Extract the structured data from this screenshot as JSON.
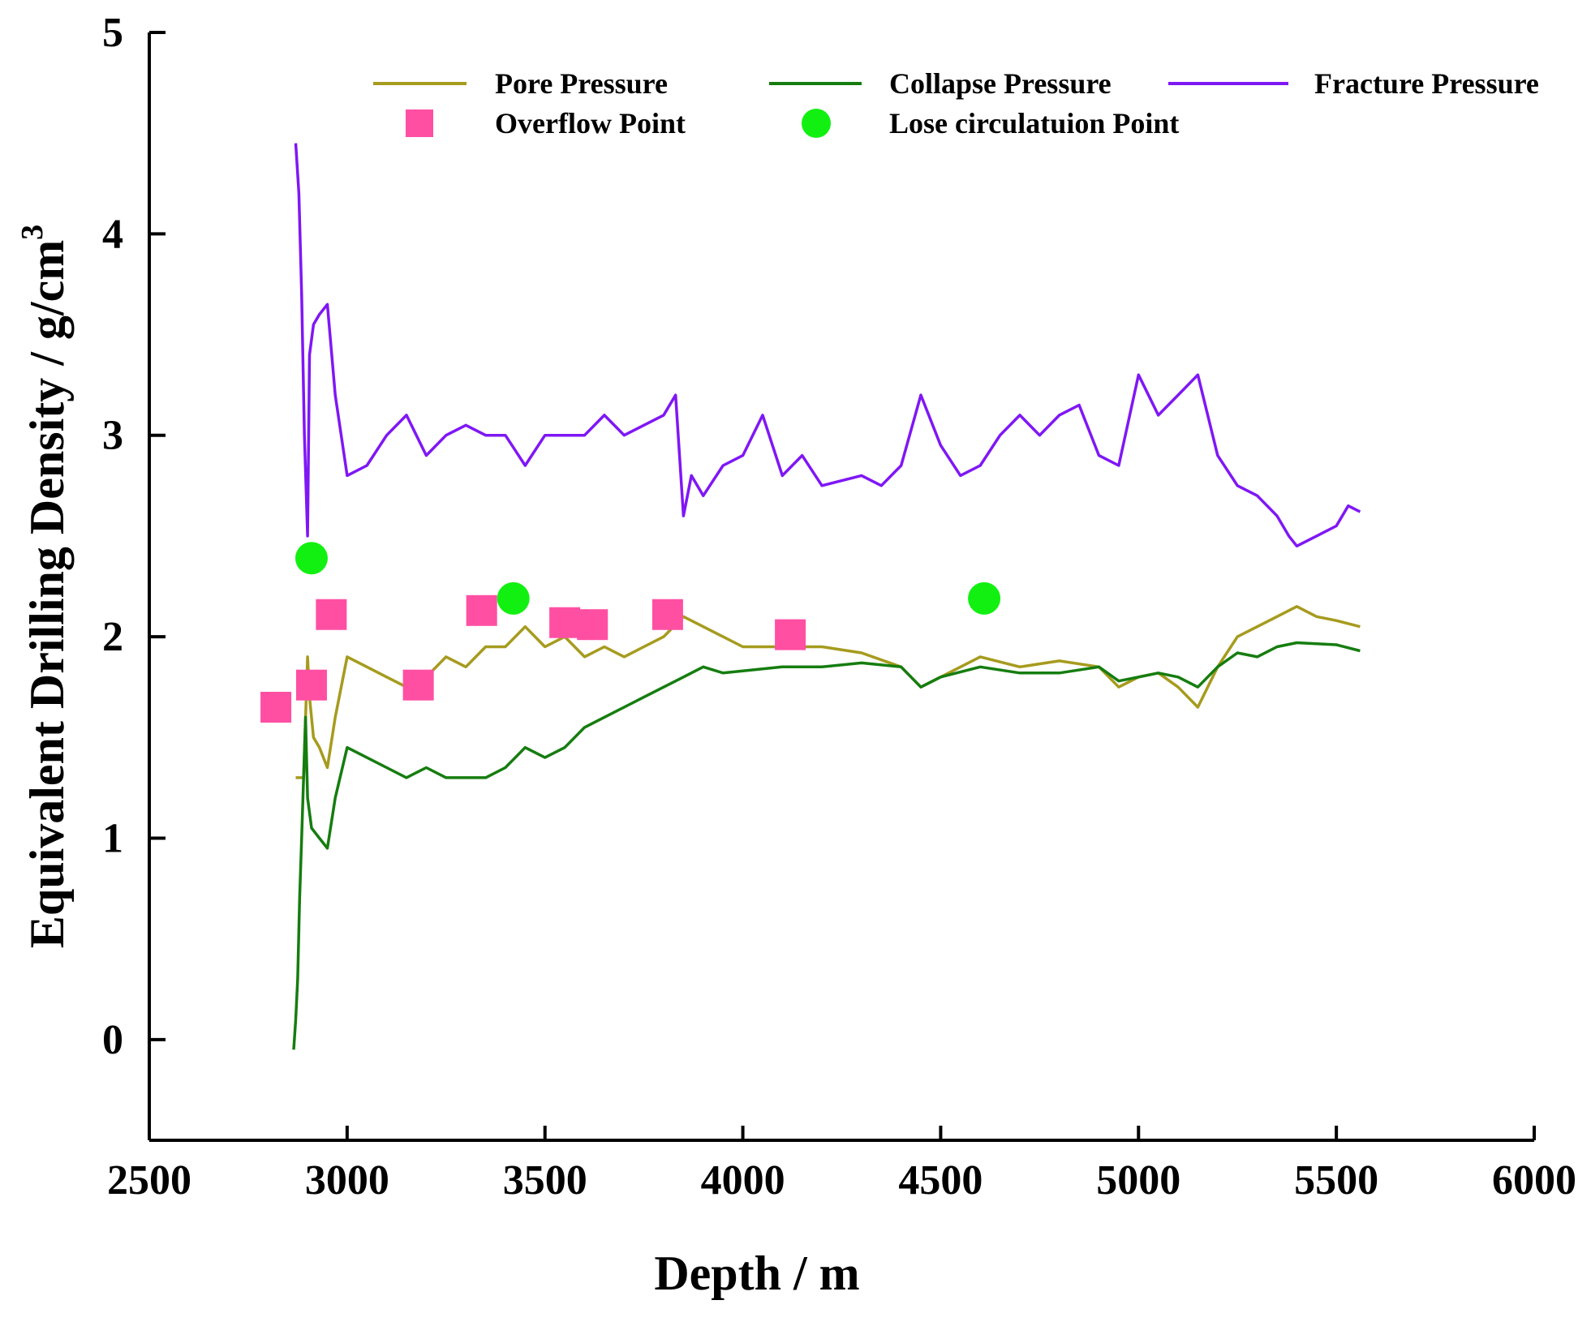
{
  "chart_data": {
    "type": "line",
    "xlabel": "Depth / m",
    "ylabel": "Equivalent Drilling Density / g/cm",
    "ylabel_sup": "3",
    "xlim": [
      2500,
      6000
    ],
    "ylim": [
      -0.5,
      5
    ],
    "xticks": [
      "2500",
      "3000",
      "3500",
      "4000",
      "4500",
      "5000",
      "5500",
      "6000"
    ],
    "yticks": [
      "0",
      "1",
      "2",
      "3",
      "4",
      "5"
    ],
    "legend_position": "top",
    "series": [
      {
        "name": "Pore Pressure",
        "kind": "line",
        "color": "#a69b1e",
        "x": [
          2870,
          2890,
          2900,
          2905,
          2915,
          2930,
          2950,
          2970,
          3000,
          3050,
          3100,
          3150,
          3200,
          3250,
          3300,
          3350,
          3400,
          3450,
          3500,
          3550,
          3600,
          3650,
          3700,
          3750,
          3800,
          3850,
          3900,
          3950,
          4000,
          4100,
          4200,
          4300,
          4400,
          4450,
          4500,
          4600,
          4700,
          4800,
          4900,
          4950,
          5000,
          5050,
          5100,
          5150,
          5200,
          5250,
          5300,
          5350,
          5400,
          5450,
          5500,
          5560
        ],
        "y": [
          1.3,
          1.3,
          1.9,
          1.7,
          1.5,
          1.45,
          1.35,
          1.6,
          1.9,
          1.85,
          1.8,
          1.75,
          1.8,
          1.9,
          1.85,
          1.95,
          1.95,
          2.05,
          1.95,
          2.0,
          1.9,
          1.95,
          1.9,
          1.95,
          2.0,
          2.1,
          2.05,
          2.0,
          1.95,
          1.95,
          1.95,
          1.92,
          1.85,
          1.75,
          1.8,
          1.9,
          1.85,
          1.88,
          1.85,
          1.75,
          1.8,
          1.82,
          1.75,
          1.65,
          1.85,
          2.0,
          2.05,
          2.1,
          2.15,
          2.1,
          2.08,
          2.05
        ]
      },
      {
        "name": "Collapse Pressure",
        "kind": "line",
        "color": "#157d0f",
        "x": [
          2865,
          2870,
          2875,
          2880,
          2885,
          2890,
          2895,
          2900,
          2910,
          2930,
          2950,
          2970,
          3000,
          3050,
          3100,
          3150,
          3200,
          3250,
          3300,
          3350,
          3400,
          3450,
          3500,
          3550,
          3600,
          3650,
          3700,
          3750,
          3800,
          3850,
          3900,
          3950,
          4000,
          4100,
          4200,
          4300,
          4400,
          4450,
          4500,
          4600,
          4700,
          4800,
          4900,
          4950,
          5000,
          5050,
          5100,
          5150,
          5200,
          5250,
          5300,
          5350,
          5400,
          5500,
          5560
        ],
        "y": [
          -0.05,
          0.1,
          0.3,
          0.7,
          1.0,
          1.3,
          1.6,
          1.2,
          1.05,
          1.0,
          0.95,
          1.2,
          1.45,
          1.4,
          1.35,
          1.3,
          1.35,
          1.3,
          1.3,
          1.3,
          1.35,
          1.45,
          1.4,
          1.45,
          1.55,
          1.6,
          1.65,
          1.7,
          1.75,
          1.8,
          1.85,
          1.82,
          1.83,
          1.85,
          1.85,
          1.87,
          1.85,
          1.75,
          1.8,
          1.85,
          1.82,
          1.82,
          1.85,
          1.78,
          1.8,
          1.82,
          1.8,
          1.75,
          1.85,
          1.92,
          1.9,
          1.95,
          1.97,
          1.96,
          1.93
        ]
      },
      {
        "name": "Fracture Pressure",
        "kind": "line",
        "color": "#7f17f5",
        "x": [
          2870,
          2878,
          2885,
          2892,
          2900,
          2905,
          2915,
          2930,
          2950,
          2970,
          3000,
          3050,
          3100,
          3150,
          3200,
          3250,
          3300,
          3350,
          3400,
          3450,
          3500,
          3550,
          3600,
          3650,
          3700,
          3750,
          3800,
          3830,
          3850,
          3870,
          3900,
          3950,
          4000,
          4050,
          4100,
          4150,
          4200,
          4300,
          4350,
          4400,
          4450,
          4500,
          4550,
          4600,
          4650,
          4700,
          4750,
          4800,
          4850,
          4900,
          4950,
          5000,
          5050,
          5100,
          5150,
          5200,
          5250,
          5300,
          5350,
          5380,
          5400,
          5450,
          5500,
          5530,
          5560
        ],
        "y": [
          4.45,
          4.2,
          3.7,
          3.0,
          2.5,
          3.4,
          3.55,
          3.6,
          3.65,
          3.2,
          2.8,
          2.85,
          3.0,
          3.1,
          2.9,
          3.0,
          3.05,
          3.0,
          3.0,
          2.85,
          3.0,
          3.0,
          3.0,
          3.1,
          3.0,
          3.05,
          3.1,
          3.2,
          2.6,
          2.8,
          2.7,
          2.85,
          2.9,
          3.1,
          2.8,
          2.9,
          2.75,
          2.8,
          2.75,
          2.85,
          3.2,
          2.95,
          2.8,
          2.85,
          3.0,
          3.1,
          3.0,
          3.1,
          3.15,
          2.9,
          2.85,
          3.3,
          3.1,
          3.2,
          3.3,
          2.9,
          2.75,
          2.7,
          2.6,
          2.5,
          2.45,
          2.5,
          2.55,
          2.65,
          2.62
        ]
      },
      {
        "name": "Overflow Point",
        "kind": "scatter",
        "marker": "square",
        "color": "#ff4fa3",
        "x": [
          2820,
          2910,
          2960,
          3180,
          3340,
          3550,
          3620,
          3810,
          4120
        ],
        "y": [
          1.65,
          1.76,
          2.11,
          1.76,
          2.13,
          2.07,
          2.06,
          2.11,
          2.01
        ]
      },
      {
        "name": "Lose circulatuion Point",
        "kind": "scatter",
        "marker": "circle",
        "color": "#12f012",
        "x": [
          2910,
          3420,
          4610
        ],
        "y": [
          2.39,
          2.19,
          2.19
        ]
      }
    ]
  }
}
